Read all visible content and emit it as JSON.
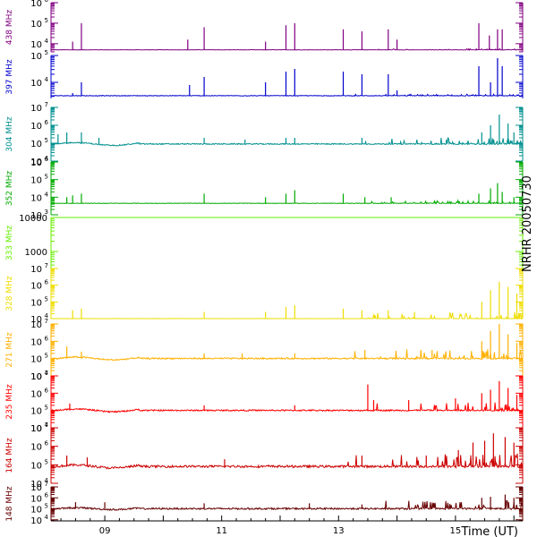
{
  "chart_data": {
    "type": "line",
    "title": "",
    "side_label": "NRHR 20050730",
    "xlabel": "Time (UT)",
    "x_ticks": [
      "09",
      "11",
      "13",
      "15"
    ],
    "x_tick_hours": [
      9,
      11,
      13,
      15
    ],
    "xlim_hours": [
      8.08,
      16.15
    ],
    "panels": [
      {
        "name": "438 MHz",
        "color": "#800080",
        "ylim_exp": [
          3.6,
          6
        ],
        "y_ticks": [
          {
            "exp": 4,
            "label": "10",
            "sup": "4"
          },
          {
            "exp": 5,
            "label": "10",
            "sup": "5"
          },
          {
            "exp": 6,
            "label": "10",
            "sup": "6"
          }
        ],
        "baseline_exp": 3.7,
        "noise": 0.02,
        "spikes": [
          [
            8.6,
            5.0
          ],
          [
            8.45,
            4.1
          ],
          [
            10.7,
            4.8
          ],
          [
            10.42,
            4.2
          ],
          [
            11.75,
            4.1
          ],
          [
            12.1,
            4.9
          ],
          [
            12.25,
            5.0
          ],
          [
            13.08,
            4.7
          ],
          [
            13.4,
            4.6
          ],
          [
            13.85,
            4.7
          ],
          [
            14.0,
            4.2
          ],
          [
            15.4,
            5.0
          ],
          [
            15.58,
            4.4
          ],
          [
            15.72,
            4.7
          ],
          [
            15.8,
            4.7
          ]
        ],
        "burst": 0.05
      },
      {
        "name": "397 MHz",
        "color": "#0000cc",
        "ylim_exp": [
          3.4,
          5
        ],
        "y_ticks": [
          {
            "exp": 4,
            "label": "10",
            "sup": "4"
          },
          {
            "exp": 5,
            "label": "10",
            "sup": "5"
          }
        ],
        "baseline_exp": 3.5,
        "noise": 0.02,
        "spikes": [
          [
            8.6,
            4.0
          ],
          [
            8.45,
            3.6
          ],
          [
            10.45,
            3.9
          ],
          [
            10.7,
            4.2
          ],
          [
            11.75,
            4.0
          ],
          [
            12.1,
            4.4
          ],
          [
            12.25,
            4.5
          ],
          [
            13.08,
            4.4
          ],
          [
            13.4,
            4.3
          ],
          [
            13.85,
            4.3
          ],
          [
            14.0,
            3.7
          ],
          [
            15.4,
            4.6
          ],
          [
            15.6,
            4.0
          ],
          [
            15.72,
            4.9
          ],
          [
            15.8,
            4.6
          ]
        ],
        "burst": 0.05
      },
      {
        "name": "304 MHz",
        "color": "#008f8f",
        "ylim_exp": [
          4,
          7
        ],
        "y_ticks": [
          {
            "exp": 4,
            "label": "10",
            "sup": "4"
          },
          {
            "exp": 5,
            "label": "10",
            "sup": "5"
          },
          {
            "exp": 6,
            "label": "10",
            "sup": "6"
          },
          {
            "exp": 7,
            "label": "10",
            "sup": "7"
          }
        ],
        "baseline_exp": 4.95,
        "noise": 0.06,
        "spikes": [
          [
            8.2,
            5.5
          ],
          [
            8.35,
            5.6
          ],
          [
            8.6,
            5.6
          ],
          [
            8.9,
            5.3
          ],
          [
            10.7,
            5.3
          ],
          [
            11.4,
            5.2
          ],
          [
            12.1,
            5.3
          ],
          [
            12.25,
            5.3
          ],
          [
            13.4,
            5.3
          ],
          [
            15.45,
            5.6
          ],
          [
            15.6,
            6.0
          ],
          [
            15.75,
            6.6
          ],
          [
            15.9,
            6.1
          ],
          [
            16.0,
            5.6
          ]
        ],
        "burst": 0.35
      },
      {
        "name": "352 MHz",
        "color": "#00aa00",
        "ylim_exp": [
          3,
          6
        ],
        "y_ticks": [
          {
            "exp": 3,
            "label": "10",
            "sup": "3"
          },
          {
            "exp": 4,
            "label": "10",
            "sup": "4"
          },
          {
            "exp": 5,
            "label": "10",
            "sup": "5"
          },
          {
            "exp": 6,
            "label": "10",
            "sup": "6"
          }
        ],
        "baseline_exp": 3.65,
        "noise": 0.03,
        "spikes": [
          [
            8.35,
            4.0
          ],
          [
            8.45,
            4.1
          ],
          [
            8.6,
            4.2
          ],
          [
            10.7,
            4.2
          ],
          [
            11.75,
            4.0
          ],
          [
            12.1,
            4.2
          ],
          [
            12.25,
            4.4
          ],
          [
            13.08,
            4.2
          ],
          [
            13.45,
            4.0
          ],
          [
            13.9,
            4.0
          ],
          [
            15.4,
            4.2
          ],
          [
            15.6,
            4.5
          ],
          [
            15.72,
            4.8
          ],
          [
            15.8,
            4.3
          ],
          [
            16.0,
            4.0
          ]
        ],
        "burst": 0.15
      },
      {
        "name": "333 MHz",
        "color": "#66ee00",
        "ylim_exp": [
          2.5,
          4
        ],
        "y_ticks": [
          {
            "exp": 3,
            "label": "1000",
            "sup": ""
          },
          {
            "exp": 4,
            "label": "10000",
            "sup": ""
          }
        ],
        "baseline_exp": 4.0,
        "noise": 0,
        "spikes": [],
        "burst": 0
      },
      {
        "name": "328 MHz",
        "color": "#eedd00",
        "ylim_exp": [
          4,
          7
        ],
        "y_ticks": [
          {
            "exp": 4,
            "label": "10",
            "sup": "4"
          },
          {
            "exp": 5,
            "label": "10",
            "sup": "5"
          },
          {
            "exp": 6,
            "label": "10",
            "sup": "6"
          },
          {
            "exp": 7,
            "label": "10",
            "sup": "7"
          }
        ],
        "baseline_exp": 4.0,
        "noise": 0.01,
        "spikes": [
          [
            8.45,
            4.5
          ],
          [
            8.6,
            4.6
          ],
          [
            10.7,
            4.4
          ],
          [
            11.75,
            4.4
          ],
          [
            12.1,
            4.7
          ],
          [
            12.25,
            4.8
          ],
          [
            13.08,
            4.6
          ],
          [
            13.4,
            4.5
          ],
          [
            13.85,
            4.5
          ],
          [
            14.3,
            4.4
          ],
          [
            15.45,
            5.0
          ],
          [
            15.6,
            5.7
          ],
          [
            15.75,
            6.2
          ],
          [
            15.9,
            5.9
          ],
          [
            16.05,
            5.5
          ]
        ],
        "burst": 0.4
      },
      {
        "name": "271 MHz",
        "color": "#ffb000",
        "ylim_exp": [
          4,
          7
        ],
        "y_ticks": [
          {
            "exp": 4,
            "label": "10",
            "sup": "4"
          },
          {
            "exp": 5,
            "label": "10",
            "sup": "5"
          },
          {
            "exp": 6,
            "label": "10",
            "sup": "6"
          },
          {
            "exp": 7,
            "label": "10",
            "sup": "7"
          }
        ],
        "baseline_exp": 5.0,
        "noise": 0.08,
        "spikes": [
          [
            8.35,
            5.7
          ],
          [
            8.6,
            5.4
          ],
          [
            10.7,
            5.3
          ],
          [
            11.35,
            5.3
          ],
          [
            12.25,
            5.3
          ],
          [
            13.45,
            5.5
          ],
          [
            14.6,
            5.5
          ],
          [
            15.45,
            6.0
          ],
          [
            15.6,
            6.6
          ],
          [
            15.75,
            7.0
          ],
          [
            15.9,
            6.4
          ],
          [
            16.05,
            5.9
          ]
        ],
        "burst": 0.5
      },
      {
        "name": "235 MHz",
        "color": "#ff0000",
        "ylim_exp": [
          4,
          7
        ],
        "y_ticks": [
          {
            "exp": 4,
            "label": "10",
            "sup": "4"
          },
          {
            "exp": 5,
            "label": "10",
            "sup": "5"
          },
          {
            "exp": 6,
            "label": "10",
            "sup": "6"
          },
          {
            "exp": 7,
            "label": "10",
            "sup": "7"
          }
        ],
        "baseline_exp": 5.0,
        "noise": 0.08,
        "spikes": [
          [
            8.4,
            5.4
          ],
          [
            10.7,
            5.3
          ],
          [
            12.25,
            5.3
          ],
          [
            13.5,
            6.5
          ],
          [
            13.6,
            5.6
          ],
          [
            14.2,
            5.6
          ],
          [
            15.0,
            5.7
          ],
          [
            15.45,
            6.0
          ],
          [
            15.6,
            6.2
          ],
          [
            15.75,
            6.7
          ],
          [
            15.9,
            6.3
          ],
          [
            16.05,
            5.9
          ]
        ],
        "burst": 0.5
      },
      {
        "name": "164 MHz",
        "color": "#cc0000",
        "ylim_exp": [
          4,
          7
        ],
        "y_ticks": [
          {
            "exp": 4,
            "label": "10",
            "sup": "4"
          },
          {
            "exp": 5,
            "label": "10",
            "sup": "5"
          },
          {
            "exp": 6,
            "label": "10",
            "sup": "6"
          },
          {
            "exp": 7,
            "label": "10",
            "sup": "7"
          }
        ],
        "baseline_exp": 4.9,
        "noise": 0.12,
        "spikes": [
          [
            8.35,
            5.5
          ],
          [
            8.7,
            5.4
          ],
          [
            11.05,
            5.3
          ],
          [
            11.8,
            5.0
          ],
          [
            13.4,
            5.5
          ],
          [
            14.5,
            5.5
          ],
          [
            15.05,
            5.8
          ],
          [
            15.3,
            6.2
          ],
          [
            15.5,
            6.3
          ],
          [
            15.65,
            6.7
          ],
          [
            15.85,
            6.5
          ],
          [
            16.0,
            6.2
          ]
        ],
        "burst": 0.7
      },
      {
        "name": "148 MHz",
        "color": "#660000",
        "ylim_exp": [
          3.9,
          7
        ],
        "y_ticks": [
          {
            "exp": 4,
            "label": "10",
            "sup": "4"
          },
          {
            "exp": 5,
            "label": "10",
            "sup": "5"
          },
          {
            "exp": 6,
            "label": "10",
            "sup": "6"
          },
          {
            "exp": 7,
            "label": "10",
            "sup": "7"
          }
        ],
        "baseline_exp": 5.0,
        "noise": 0.15,
        "spikes": [
          [
            8.5,
            5.6
          ],
          [
            9.0,
            5.6
          ],
          [
            10.7,
            5.5
          ],
          [
            12.5,
            5.5
          ],
          [
            13.4,
            5.4
          ],
          [
            15.45,
            6.0
          ],
          [
            15.6,
            6.1
          ],
          [
            15.85,
            6.3
          ],
          [
            16.0,
            6.0
          ]
        ],
        "burst": 0.7
      }
    ]
  }
}
